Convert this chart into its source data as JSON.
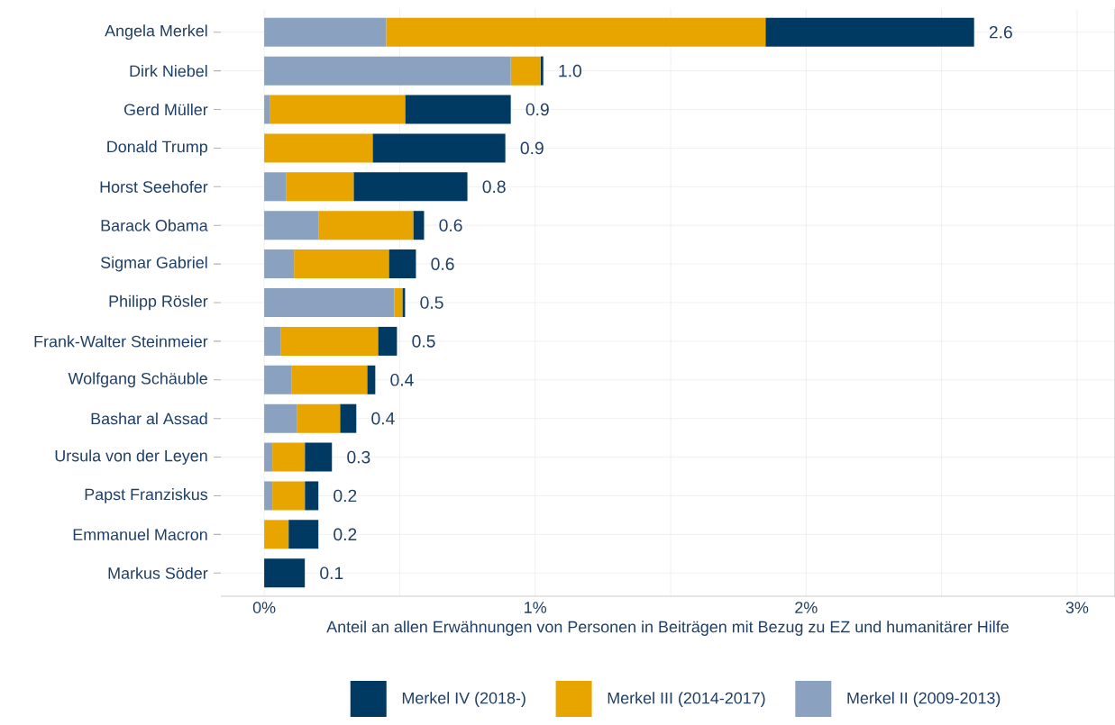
{
  "chart_data": {
    "type": "bar",
    "orientation": "horizontal",
    "stacked": true,
    "xlabel": "Anteil an allen Erwähnungen von Personen in Beiträgen mit Bezug zu EZ und humanitärer Hilfe",
    "categories": [
      "Angela Merkel",
      "Dirk Niebel",
      "Gerd Müller",
      "Donald Trump",
      "Horst Seehofer",
      "Barack Obama",
      "Sigmar Gabriel",
      "Philipp Rösler",
      "Frank-Walter Steinmeier",
      "Wolfgang Schäuble",
      "Bashar al Assad",
      "Ursula von der Leyen",
      "Papst Franziskus",
      "Emmanuel Macron",
      "Markus Söder"
    ],
    "series": [
      {
        "name": "Merkel II (2009-2013)",
        "color": "#8aa2bf",
        "values": [
          0.45,
          0.91,
          0.02,
          null,
          0.08,
          0.2,
          0.11,
          0.48,
          0.06,
          0.1,
          0.12,
          0.03,
          0.03,
          null,
          null
        ]
      },
      {
        "name": "Merkel III (2014-2017)",
        "color": "#e8a500",
        "values": [
          1.4,
          0.11,
          0.5,
          0.4,
          0.25,
          0.35,
          0.35,
          0.03,
          0.36,
          0.28,
          0.16,
          0.12,
          0.12,
          0.09,
          null
        ]
      },
      {
        "name": "Merkel IV (2018-)",
        "color": "#003a63",
        "values": [
          0.77,
          0.01,
          0.39,
          0.49,
          0.42,
          0.04,
          0.1,
          0.01,
          0.07,
          0.03,
          0.06,
          0.1,
          0.05,
          0.11,
          0.15
        ]
      }
    ],
    "totals": [
      "2.6",
      "1.0",
      "0.9",
      "0.9",
      "0.8",
      "0.6",
      "0.6",
      "0.5",
      "0.5",
      "0.4",
      "0.4",
      "0.3",
      "0.2",
      "0.2",
      "0.1"
    ],
    "xlim": [
      -0.16,
      3.14
    ],
    "xticks": [
      {
        "value": 0,
        "label": "0%"
      },
      {
        "value": 1,
        "label": "1%"
      },
      {
        "value": 2,
        "label": "2%"
      },
      {
        "value": 3,
        "label": "3%"
      }
    ],
    "grid": true,
    "legend": "bottom"
  }
}
